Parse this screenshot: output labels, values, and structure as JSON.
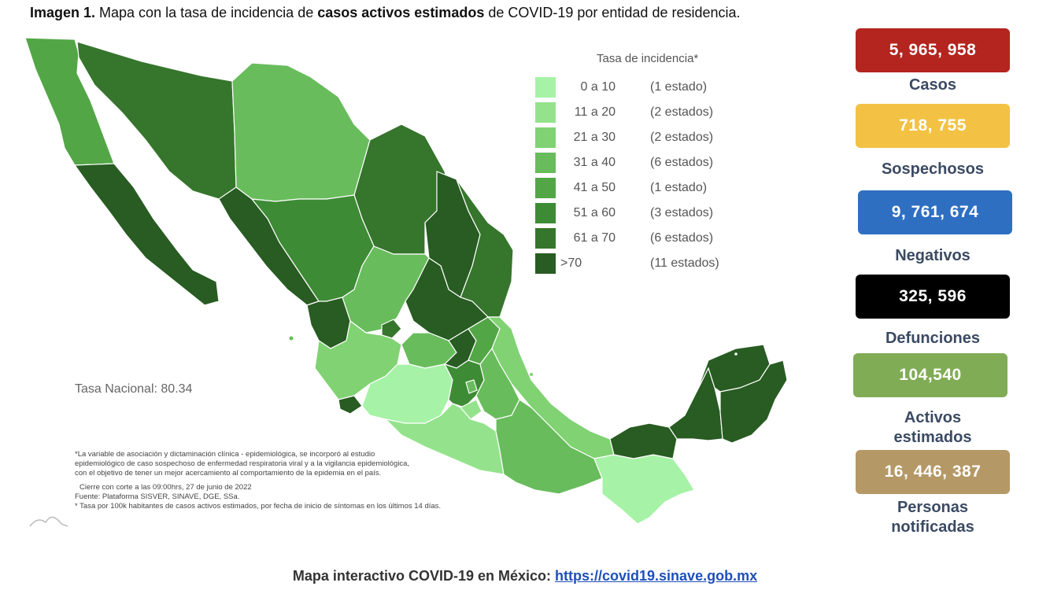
{
  "title": {
    "prefix": "Imagen 1.",
    "part1": " Mapa con la tasa de incidencia de ",
    "bold": "casos activos estimados",
    "part2": " de COVID-19 por entidad de residencia."
  },
  "legend": {
    "title": "Tasa de incidencia*",
    "rows": [
      {
        "range": "0 a  10",
        "count": "(1 estado)",
        "color": "#a6f2a6"
      },
      {
        "range": "11 a  20",
        "count": "(2 estados)",
        "color": "#94e38c"
      },
      {
        "range": "21 a  30",
        "count": "(2 estados)",
        "color": "#80d273"
      },
      {
        "range": "31 a  40",
        "count": "(6 estados)",
        "color": "#68bc5c"
      },
      {
        "range": "41 a  50",
        "count": "(1 estado)",
        "color": "#53a646"
      },
      {
        "range": "51 a  60",
        "count": "(3 estados)",
        "color": "#3e8b36"
      },
      {
        "range": "61 a  70",
        "count": "(6 estados)",
        "color": "#36752c"
      },
      {
        "range": ">70",
        "count": "(11 estados)",
        "color": "#285c22"
      }
    ]
  },
  "tasa_nacional": "Tasa Nacional: 80.34",
  "notes": {
    "line1": "*La variable de asociación y dictaminación clínica - epidemiológica, se incorporó al estudio",
    "line2": "epidemiológico de caso sospechoso de enfermedad respiratoria viral y a la vigilancia epidemiológica,",
    "line3": "con el objetivo de tener un mejor acercamiento al comportamiento de la epidemia en el país.",
    "line4": "Cierre con corte a las 09:00hrs, 27 de junio de 2022",
    "line5": "Fuente: Plataforma SISVER, SINAVE, DGE, SSa.",
    "line6": "* Tasa por 100k habitantes de casos activos estimados, por fecha de inicio de síntomas en los últimos 14 días."
  },
  "stats": [
    {
      "value": "5, 965, 958",
      "label": "Casos",
      "color": "#b3251e"
    },
    {
      "value": "718, 755",
      "label": "Sospechosos",
      "color": "#f3c244"
    },
    {
      "value": "9, 761, 674",
      "label": "Negativos",
      "color": "#2f6fc2"
    },
    {
      "value": "325, 596",
      "label": "Defunciones",
      "color": "#000000"
    },
    {
      "value": "104,540",
      "label_line1": "Activos",
      "label_line2": "estimados",
      "color": "#80ac56"
    },
    {
      "value": "16, 446, 387",
      "label_line1": "Personas",
      "label_line2": "notificadas",
      "color": "#b49866"
    }
  ],
  "footer": {
    "text": "Mapa interactivo COVID-19 en México: ",
    "link": "https://covid19.sinave.gob.mx"
  }
}
